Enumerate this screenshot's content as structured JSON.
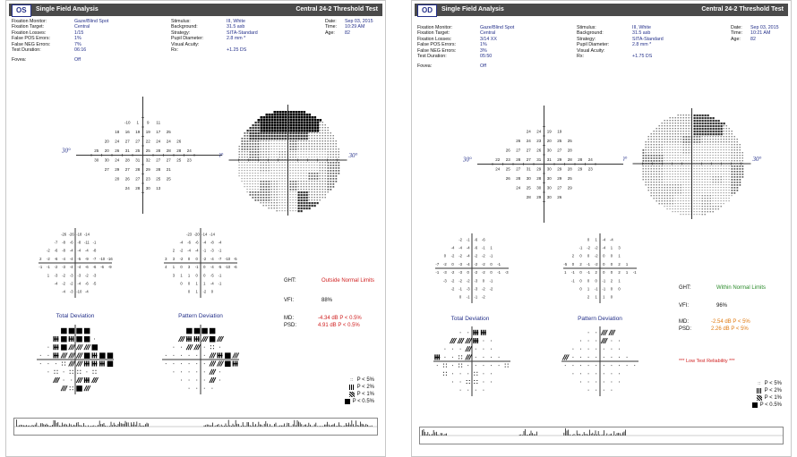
{
  "reports": [
    {
      "eye": "OS",
      "title": "Single Field Analysis",
      "test": "Central 24-2 Threshold Test",
      "info_left": [
        {
          "label": "Fixation Monitor:",
          "value": "Gaze/Blind Spot"
        },
        {
          "label": "Fixation Target:",
          "value": "Central"
        },
        {
          "label": "Fixation Losses:",
          "value": "1/15"
        },
        {
          "label": "False POS Errors:",
          "value": "1%"
        },
        {
          "label": "False NEG Errors:",
          "value": "7%"
        },
        {
          "label": "Test Duration:",
          "value": "06:16"
        },
        {
          "label": "Fovea:",
          "value": "Off"
        }
      ],
      "info_mid": [
        {
          "label": "Stimulus:",
          "value": "III, White"
        },
        {
          "label": "Background:",
          "value": "31.5 asb"
        },
        {
          "label": "Strategy:",
          "value": "SITA-Standard"
        },
        {
          "label": "Pupil Diameter:",
          "value": "2.8 mm *"
        },
        {
          "label": "Visual Acuity:",
          "value": ""
        },
        {
          "label": "Rx:",
          "value": "+1.25 DS"
        }
      ],
      "info_right": [
        {
          "label": "Date:",
          "value": "Sep 03, 2015"
        },
        {
          "label": "Time:",
          "value": "10:29 AM"
        },
        {
          "label": "Age:",
          "value": "82"
        }
      ],
      "axis_label_left": "30°",
      "axis_label_right": "30°",
      "ght_label": "GHT:",
      "ght_value": "Outside Normal Limits",
      "ght_color": "#d02020",
      "vfi_label": "VFI:",
      "vfi_value": "88%",
      "md_label": "MD:",
      "md_value": "-4.34 dB P < 0.5%",
      "psd_label": "PSD:",
      "psd_value": "4.91 dB P < 0.5%",
      "mdpsd_color": "#d02020",
      "total_deviation": "Total Deviation",
      "pattern_deviation": "Pattern Deviation",
      "low_reliability": ""
    },
    {
      "eye": "OD",
      "title": "Single Field Analysis",
      "test": "Central 24-2 Threshold Test",
      "info_left": [
        {
          "label": "Fixation Monitor:",
          "value": "Gaze/Blind Spot"
        },
        {
          "label": "Fixation Target:",
          "value": "Central"
        },
        {
          "label": "Fixation Losses:",
          "value": "3/14 XX"
        },
        {
          "label": "False POS Errors:",
          "value": "1%"
        },
        {
          "label": "False NEG Errors:",
          "value": "3%"
        },
        {
          "label": "Test Duration:",
          "value": "05:50"
        },
        {
          "label": "Fovea:",
          "value": "Off"
        }
      ],
      "info_mid": [
        {
          "label": "Stimulus:",
          "value": "III, White"
        },
        {
          "label": "Background:",
          "value": "31.5 asb"
        },
        {
          "label": "Strategy:",
          "value": "SITA-Standard"
        },
        {
          "label": "Pupil Diameter:",
          "value": "2.8 mm *"
        },
        {
          "label": "Visual Acuity:",
          "value": ""
        },
        {
          "label": "Rx:",
          "value": "+1.75 DS"
        }
      ],
      "info_right": [
        {
          "label": "Date:",
          "value": "Sep 03, 2015"
        },
        {
          "label": "Time:",
          "value": "10:21 AM"
        },
        {
          "label": "Age:",
          "value": "82"
        }
      ],
      "axis_label_left": "30°",
      "axis_label_right": "30°",
      "ght_label": "GHT:",
      "ght_value": "Within Normal Limits",
      "ght_color": "#2a8a2a",
      "vfi_label": "VFI:",
      "vfi_value": "96%",
      "md_label": "MD:",
      "md_value": "-2.54 dB P < 5%",
      "psd_label": "PSD:",
      "psd_value": "2.26 dB P < 5%",
      "mdpsd_color": "#e07a10",
      "total_deviation": "Total Deviation",
      "pattern_deviation": "Pattern Deviation",
      "low_reliability": "*** Low Test Reliability ***"
    }
  ],
  "legend": [
    {
      "sym": "::",
      "label": "P < 5%"
    },
    {
      "sym": "p2",
      "label": "P < 2%"
    },
    {
      "sym": "p3",
      "label": "P < 1%"
    },
    {
      "sym": "p4",
      "label": "P < 0.5%"
    }
  ],
  "threshold_grid_left": [
    [
      "",
      "",
      "",
      "-10",
      "1",
      "9",
      "11",
      "",
      "",
      ""
    ],
    [
      "",
      "",
      "18",
      "16",
      "19",
      "19",
      "17",
      "25",
      "",
      ""
    ],
    [
      "",
      "20",
      "24",
      "27",
      "27",
      "22",
      "24",
      "24",
      "26",
      ""
    ],
    [
      "25",
      "20",
      "26",
      "31",
      "25",
      "25",
      "28",
      "28",
      "28",
      "24"
    ],
    [
      "30",
      "30",
      "24",
      "28",
      "31",
      "32",
      "27",
      "27",
      "25",
      "23"
    ],
    [
      "",
      "27",
      "29",
      "27",
      "28",
      "29",
      "28",
      "21",
      "",
      ""
    ],
    [
      "",
      "",
      "20",
      "26",
      "27",
      "23",
      "25",
      "25",
      "",
      ""
    ],
    [
      "",
      "",
      "",
      "24",
      "28",
      "30",
      "13",
      "",
      "",
      ""
    ]
  ],
  "threshold_grid_right": [
    [
      "",
      "",
      "",
      "24",
      "24",
      "19",
      "19",
      "",
      "",
      ""
    ],
    [
      "",
      "",
      "26",
      "24",
      "23",
      "20",
      "25",
      "25",
      "",
      ""
    ],
    [
      "",
      "26",
      "27",
      "27",
      "26",
      "30",
      "27",
      "28",
      "",
      ""
    ],
    [
      "22",
      "23",
      "28",
      "27",
      "31",
      "31",
      "29",
      "28",
      "28",
      "24"
    ],
    [
      "24",
      "25",
      "27",
      "31",
      "29",
      "30",
      "29",
      "28",
      "29",
      "23"
    ],
    [
      "",
      "26",
      "28",
      "30",
      "28",
      "30",
      "29",
      "25",
      "",
      ""
    ],
    [
      "",
      "",
      "24",
      "25",
      "30",
      "30",
      "27",
      "29",
      "",
      ""
    ],
    [
      "",
      "",
      "",
      "28",
      "29",
      "30",
      "26",
      "",
      "",
      ""
    ]
  ],
  "total_dev_left": [
    [
      "",
      "",
      "",
      "-26",
      "-26",
      "-18",
      "-14",
      "",
      "",
      ""
    ],
    [
      "",
      "",
      "-7",
      "-8",
      "-6",
      "-8",
      "-11",
      "-1",
      "",
      ""
    ],
    [
      "",
      "-2",
      "-6",
      "-8",
      "-4",
      "-4",
      "-4",
      "-8",
      "",
      ""
    ],
    [
      "2",
      "-2",
      "-6",
      "-4",
      "-4",
      "-5",
      "-9",
      "-7",
      "-10",
      "-16"
    ],
    [
      "-1",
      "-1",
      "-2",
      "-3",
      "-4",
      "-4",
      "-6",
      "-6",
      "-6",
      "-9"
    ],
    [
      "",
      "1",
      "-3",
      "-2",
      "-3",
      "-3",
      "-2",
      "-3",
      "",
      ""
    ],
    [
      "",
      "",
      "-4",
      "-2",
      "-2",
      "-4",
      "-6",
      "-5",
      "",
      ""
    ],
    [
      "",
      "",
      "",
      "-4",
      "-3",
      "-10",
      "-4",
      "",
      "",
      ""
    ]
  ],
  "pattern_dev_left": [
    [
      "",
      "",
      "",
      "-23",
      "-20",
      "-14",
      "-14",
      "",
      "",
      ""
    ],
    [
      "",
      "",
      "-4",
      "-6",
      "-6",
      "-4",
      "-8",
      "-4",
      "",
      ""
    ],
    [
      "",
      "2",
      "-2",
      "-4",
      "-4",
      "-1",
      "-3",
      "-1",
      "",
      ""
    ],
    [
      "3",
      "3",
      "-2",
      "0",
      "0",
      "-2",
      "-4",
      "-7",
      "-10",
      "-5"
    ],
    [
      "4",
      "1",
      "0",
      "3",
      "-1",
      "0",
      "-4",
      "-5",
      "-10",
      "-6"
    ],
    [
      "",
      "3",
      "1",
      "1",
      "0",
      "0",
      "-5",
      "-1",
      "",
      ""
    ],
    [
      "",
      "",
      "0",
      "0",
      "1",
      "1",
      "-4",
      "-1",
      "",
      ""
    ],
    [
      "",
      "",
      "",
      "0",
      "1",
      "-2",
      "0",
      "",
      "",
      ""
    ]
  ],
  "total_dev_right": [
    [
      "",
      "",
      "",
      "-2",
      "-1",
      "-6",
      "-6",
      "",
      "",
      ""
    ],
    [
      "",
      "",
      "-4",
      "-4",
      "-4",
      "-6",
      "-1",
      "1",
      "",
      ""
    ],
    [
      "",
      "0",
      "-2",
      "-2",
      "-4",
      "-2",
      "-2",
      "-1",
      "",
      ""
    ],
    [
      "-7",
      "-2",
      "0",
      "-3",
      "-4",
      "-2",
      "-2",
      "0",
      "-1",
      ""
    ],
    [
      "-1",
      "-3",
      "-2",
      "-3",
      "0",
      "-2",
      "-2",
      "0",
      "-1",
      "-3"
    ],
    [
      "",
      "-3",
      "-2",
      "-2",
      "-2",
      "-3",
      "0",
      "-1",
      "",
      ""
    ],
    [
      "",
      "",
      "-2",
      "-1",
      "-3",
      "-3",
      "-2",
      "-2",
      "",
      ""
    ],
    [
      "",
      "",
      "",
      "0",
      "-1",
      "-1",
      "-2",
      "",
      "",
      ""
    ]
  ],
  "pattern_dev_right": [
    [
      "",
      "",
      "",
      "0",
      "1",
      "-4",
      "-4",
      "",
      "",
      ""
    ],
    [
      "",
      "",
      "-1",
      "-2",
      "-2",
      "-4",
      "1",
      "3",
      "",
      ""
    ],
    [
      "",
      "2",
      "0",
      "0",
      "-2",
      "0",
      "0",
      "1",
      "",
      ""
    ],
    [
      "-5",
      "0",
      "2",
      "-1",
      "-2",
      "0",
      "0",
      "2",
      "1",
      ""
    ],
    [
      "1",
      "-1",
      "0",
      "-1",
      "2",
      "0",
      "0",
      "2",
      "1",
      "-1"
    ],
    [
      "",
      "-1",
      "0",
      "0",
      "0",
      "-1",
      "2",
      "1",
      "",
      ""
    ],
    [
      "",
      "",
      "0",
      "1",
      "-1",
      "-1",
      "0",
      "0",
      "",
      ""
    ],
    [
      "",
      "",
      "",
      "2",
      "1",
      "1",
      "0",
      "",
      "",
      ""
    ]
  ]
}
